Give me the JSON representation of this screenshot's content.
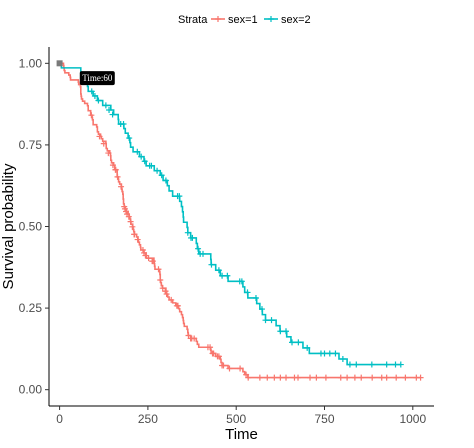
{
  "chart_data": {
    "type": "line",
    "xlabel": "Time",
    "ylabel": "Survival probability",
    "xlim": [
      -30,
      1060
    ],
    "ylim": [
      -0.05,
      1.05
    ],
    "x_ticks": [
      0,
      250,
      500,
      750,
      1000
    ],
    "y_ticks": [
      0.0,
      0.25,
      0.5,
      0.75,
      1.0
    ],
    "x_tick_labels": [
      "0",
      "250",
      "500",
      "750",
      "1000"
    ],
    "y_tick_labels": [
      "0.00",
      "0.25",
      "0.50",
      "0.75",
      "1.00"
    ],
    "grid": false,
    "legend": {
      "position": "top",
      "title": "Strata",
      "entries": [
        "sex=1",
        "sex=2"
      ]
    },
    "annotation": {
      "text": "Time:60",
      "x": 60,
      "y": 0.97
    },
    "series": [
      {
        "name": "sex=1",
        "color": "#F8766D",
        "steps": [
          [
            0,
            1.0
          ],
          [
            11,
            0.993
          ],
          [
            12,
            0.986
          ],
          [
            13,
            0.978
          ],
          [
            15,
            0.971
          ],
          [
            26,
            0.964
          ],
          [
            30,
            0.957
          ],
          [
            31,
            0.949
          ],
          [
            53,
            0.942
          ],
          [
            54,
            0.935
          ],
          [
            59,
            0.928
          ],
          [
            60,
            0.906
          ],
          [
            61,
            0.899
          ],
          [
            62,
            0.891
          ],
          [
            65,
            0.884
          ],
          [
            71,
            0.877
          ],
          [
            79,
            0.87
          ],
          [
            81,
            0.855
          ],
          [
            88,
            0.841
          ],
          [
            92,
            0.834
          ],
          [
            93,
            0.827
          ],
          [
            95,
            0.812
          ],
          [
            105,
            0.805
          ],
          [
            107,
            0.79
          ],
          [
            110,
            0.783
          ],
          [
            116,
            0.776
          ],
          [
            118,
            0.769
          ],
          [
            122,
            0.761
          ],
          [
            131,
            0.754
          ],
          [
            132,
            0.739
          ],
          [
            135,
            0.732
          ],
          [
            142,
            0.725
          ],
          [
            144,
            0.717
          ],
          [
            145,
            0.703
          ],
          [
            147,
            0.695
          ],
          [
            153,
            0.688
          ],
          [
            156,
            0.674
          ],
          [
            163,
            0.652
          ],
          [
            166,
            0.645
          ],
          [
            167,
            0.637
          ],
          [
            170,
            0.63
          ],
          [
            175,
            0.622
          ],
          [
            176,
            0.614
          ],
          [
            177,
            0.607
          ],
          [
            179,
            0.599
          ],
          [
            180,
            0.584
          ],
          [
            181,
            0.569
          ],
          [
            183,
            0.561
          ],
          [
            186,
            0.554
          ],
          [
            189,
            0.546
          ],
          [
            194,
            0.538
          ],
          [
            197,
            0.53
          ],
          [
            199,
            0.523
          ],
          [
            201,
            0.515
          ],
          [
            202,
            0.507
          ],
          [
            207,
            0.499
          ],
          [
            208,
            0.491
          ],
          [
            210,
            0.484
          ],
          [
            212,
            0.476
          ],
          [
            218,
            0.468
          ],
          [
            222,
            0.46
          ],
          [
            223,
            0.452
          ],
          [
            226,
            0.444
          ],
          [
            229,
            0.436
          ],
          [
            230,
            0.428
          ],
          [
            239,
            0.419
          ],
          [
            245,
            0.411
          ],
          [
            246,
            0.403
          ],
          [
            267,
            0.394
          ],
          [
            268,
            0.386
          ],
          [
            269,
            0.378
          ],
          [
            270,
            0.369
          ],
          [
            283,
            0.361
          ],
          [
            284,
            0.353
          ],
          [
            285,
            0.336
          ],
          [
            286,
            0.328
          ],
          [
            288,
            0.319
          ],
          [
            291,
            0.311
          ],
          [
            301,
            0.302
          ],
          [
            303,
            0.293
          ],
          [
            306,
            0.284
          ],
          [
            310,
            0.275
          ],
          [
            320,
            0.266
          ],
          [
            329,
            0.257
          ],
          [
            337,
            0.248
          ],
          [
            340,
            0.239
          ],
          [
            345,
            0.23
          ],
          [
            348,
            0.221
          ],
          [
            350,
            0.212
          ],
          [
            351,
            0.203
          ],
          [
            353,
            0.194
          ],
          [
            361,
            0.185
          ],
          [
            363,
            0.175
          ],
          [
            364,
            0.166
          ],
          [
            371,
            0.157
          ],
          [
            387,
            0.148
          ],
          [
            390,
            0.139
          ],
          [
            394,
            0.13
          ],
          [
            428,
            0.121
          ],
          [
            429,
            0.111
          ],
          [
            442,
            0.102
          ],
          [
            455,
            0.093
          ],
          [
            457,
            0.083
          ],
          [
            460,
            0.074
          ],
          [
            477,
            0.065
          ],
          [
            519,
            0.055
          ],
          [
            524,
            0.046
          ],
          [
            533,
            0.037
          ]
        ],
        "censored": [
          [
            90,
            0.841
          ],
          [
            113,
            0.776
          ],
          [
            125,
            0.754
          ],
          [
            138,
            0.725
          ],
          [
            151,
            0.688
          ],
          [
            158,
            0.674
          ],
          [
            159,
            0.674
          ],
          [
            164,
            0.652
          ],
          [
            174,
            0.622
          ],
          [
            183,
            0.561
          ],
          [
            185,
            0.554
          ],
          [
            188,
            0.546
          ],
          [
            191,
            0.538
          ],
          [
            196,
            0.53
          ],
          [
            201,
            0.515
          ],
          [
            206,
            0.499
          ],
          [
            211,
            0.476
          ],
          [
            212,
            0.476
          ],
          [
            221,
            0.46
          ],
          [
            236,
            0.428
          ],
          [
            239,
            0.419
          ],
          [
            243,
            0.411
          ],
          [
            252,
            0.403
          ],
          [
            262,
            0.394
          ],
          [
            264,
            0.394
          ],
          [
            280,
            0.369
          ],
          [
            285,
            0.336
          ],
          [
            292,
            0.311
          ],
          [
            299,
            0.302
          ],
          [
            300,
            0.302
          ],
          [
            303,
            0.293
          ],
          [
            316,
            0.275
          ],
          [
            332,
            0.257
          ],
          [
            335,
            0.257
          ],
          [
            365,
            0.166
          ],
          [
            371,
            0.157
          ],
          [
            374,
            0.157
          ],
          [
            381,
            0.157
          ],
          [
            420,
            0.13
          ],
          [
            426,
            0.13
          ],
          [
            433,
            0.111
          ],
          [
            436,
            0.111
          ],
          [
            447,
            0.102
          ],
          [
            451,
            0.102
          ],
          [
            460,
            0.074
          ],
          [
            464,
            0.074
          ],
          [
            481,
            0.065
          ],
          [
            511,
            0.065
          ],
          [
            528,
            0.046
          ],
          [
            534,
            0.037
          ],
          [
            567,
            0.037
          ],
          [
            588,
            0.037
          ],
          [
            608,
            0.037
          ],
          [
            625,
            0.037
          ],
          [
            641,
            0.037
          ],
          [
            665,
            0.037
          ],
          [
            675,
            0.037
          ],
          [
            709,
            0.037
          ],
          [
            727,
            0.037
          ],
          [
            754,
            0.037
          ],
          [
            796,
            0.037
          ],
          [
            814,
            0.037
          ],
          [
            836,
            0.037
          ],
          [
            854,
            0.037
          ],
          [
            885,
            0.037
          ],
          [
            912,
            0.037
          ],
          [
            926,
            0.037
          ],
          [
            953,
            0.037
          ],
          [
            979,
            0.037
          ],
          [
            1010,
            0.037
          ],
          [
            1022,
            0.037
          ]
        ]
      },
      {
        "name": "sex=2",
        "color": "#00BFC4",
        "steps": [
          [
            0,
            1.0
          ],
          [
            5,
            0.986
          ],
          [
            60,
            0.971
          ],
          [
            61,
            0.957
          ],
          [
            62,
            0.943
          ],
          [
            79,
            0.929
          ],
          [
            81,
            0.914
          ],
          [
            95,
            0.9
          ],
          [
            107,
            0.886
          ],
          [
            122,
            0.871
          ],
          [
            145,
            0.857
          ],
          [
            153,
            0.843
          ],
          [
            166,
            0.828
          ],
          [
            167,
            0.814
          ],
          [
            182,
            0.8
          ],
          [
            186,
            0.786
          ],
          [
            194,
            0.771
          ],
          [
            199,
            0.757
          ],
          [
            201,
            0.743
          ],
          [
            208,
            0.729
          ],
          [
            226,
            0.714
          ],
          [
            239,
            0.7
          ],
          [
            245,
            0.686
          ],
          [
            268,
            0.671
          ],
          [
            285,
            0.657
          ],
          [
            293,
            0.641
          ],
          [
            305,
            0.625
          ],
          [
            310,
            0.609
          ],
          [
            320,
            0.593
          ],
          [
            340,
            0.577
          ],
          [
            345,
            0.561
          ],
          [
            348,
            0.545
          ],
          [
            350,
            0.529
          ],
          [
            351,
            0.513
          ],
          [
            361,
            0.497
          ],
          [
            363,
            0.481
          ],
          [
            371,
            0.465
          ],
          [
            387,
            0.448
          ],
          [
            390,
            0.432
          ],
          [
            394,
            0.416
          ],
          [
            428,
            0.399
          ],
          [
            429,
            0.383
          ],
          [
            442,
            0.366
          ],
          [
            455,
            0.349
          ],
          [
            477,
            0.332
          ],
          [
            519,
            0.315
          ],
          [
            524,
            0.298
          ],
          [
            533,
            0.281
          ],
          [
            558,
            0.264
          ],
          [
            567,
            0.247
          ],
          [
            574,
            0.23
          ],
          [
            583,
            0.213
          ],
          [
            613,
            0.196
          ],
          [
            624,
            0.179
          ],
          [
            643,
            0.162
          ],
          [
            655,
            0.145
          ],
          [
            689,
            0.128
          ],
          [
            707,
            0.111
          ],
          [
            791,
            0.094
          ],
          [
            814,
            0.077
          ]
        ],
        "censored": [
          [
            91,
            0.914
          ],
          [
            100,
            0.9
          ],
          [
            110,
            0.886
          ],
          [
            131,
            0.871
          ],
          [
            140,
            0.857
          ],
          [
            150,
            0.843
          ],
          [
            173,
            0.814
          ],
          [
            181,
            0.814
          ],
          [
            197,
            0.771
          ],
          [
            220,
            0.729
          ],
          [
            231,
            0.714
          ],
          [
            241,
            0.7
          ],
          [
            255,
            0.686
          ],
          [
            260,
            0.686
          ],
          [
            276,
            0.671
          ],
          [
            289,
            0.657
          ],
          [
            301,
            0.641
          ],
          [
            334,
            0.593
          ],
          [
            339,
            0.593
          ],
          [
            363,
            0.481
          ],
          [
            372,
            0.465
          ],
          [
            376,
            0.465
          ],
          [
            392,
            0.432
          ],
          [
            398,
            0.416
          ],
          [
            406,
            0.416
          ],
          [
            430,
            0.383
          ],
          [
            451,
            0.366
          ],
          [
            460,
            0.349
          ],
          [
            475,
            0.349
          ],
          [
            510,
            0.332
          ],
          [
            516,
            0.332
          ],
          [
            532,
            0.298
          ],
          [
            556,
            0.281
          ],
          [
            573,
            0.247
          ],
          [
            583,
            0.213
          ],
          [
            600,
            0.213
          ],
          [
            625,
            0.179
          ],
          [
            641,
            0.179
          ],
          [
            658,
            0.145
          ],
          [
            676,
            0.145
          ],
          [
            701,
            0.128
          ],
          [
            740,
            0.111
          ],
          [
            750,
            0.111
          ],
          [
            765,
            0.111
          ],
          [
            781,
            0.111
          ],
          [
            802,
            0.094
          ],
          [
            822,
            0.077
          ],
          [
            840,
            0.077
          ],
          [
            884,
            0.077
          ],
          [
            926,
            0.077
          ],
          [
            951,
            0.077
          ],
          [
            966,
            0.077
          ]
        ]
      }
    ]
  }
}
